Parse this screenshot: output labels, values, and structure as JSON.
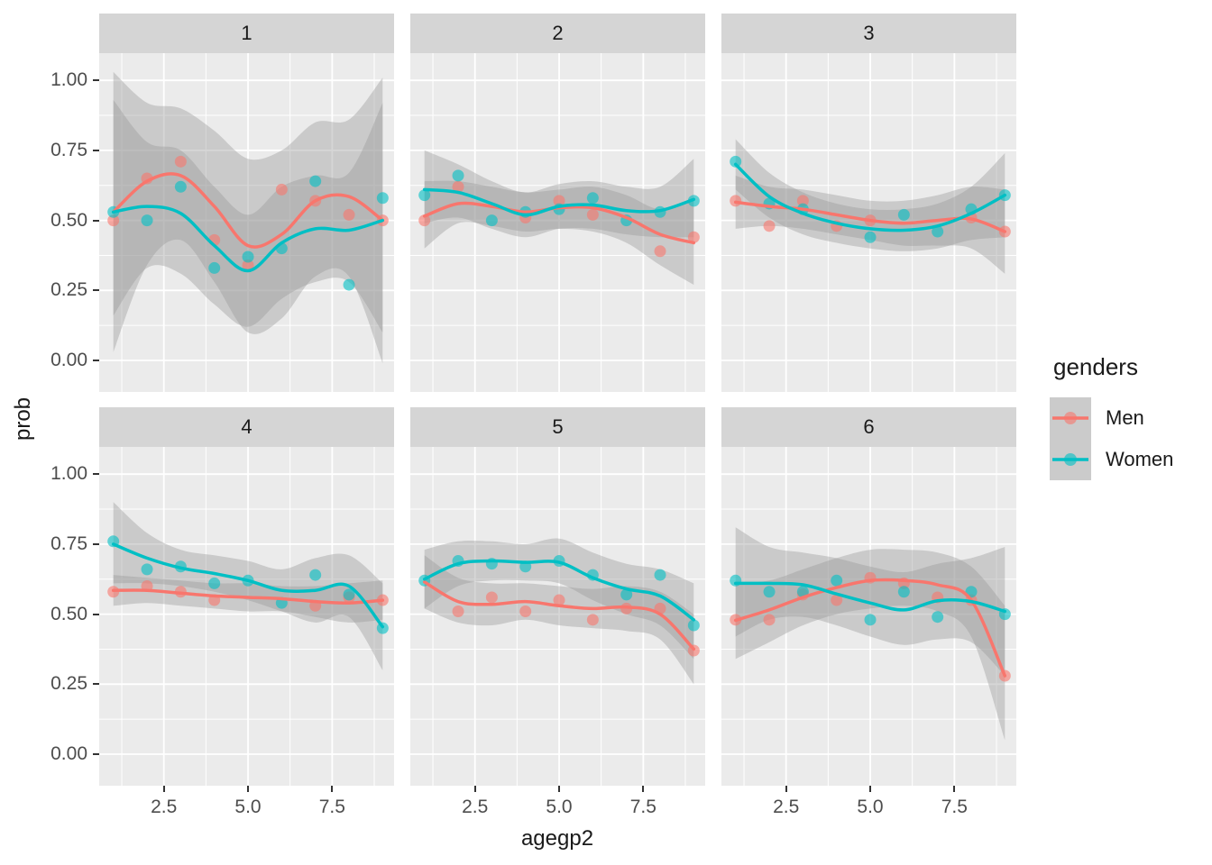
{
  "figure": {
    "y_axis_title": "prob",
    "x_axis_title": "agegp2",
    "y_ticks": [
      "1.00",
      "0.75",
      "0.50",
      "0.25",
      "0.00"
    ],
    "x_ticks": [
      "2.5",
      "5.0",
      "7.5"
    ],
    "legend": {
      "title": "genders",
      "entries": [
        {
          "label": "Men",
          "color": "#F8766D"
        },
        {
          "label": "Women",
          "color": "#00BFC4"
        }
      ]
    },
    "colors": {
      "men": "#F8766D",
      "women": "#00BFC4",
      "panel_bg": "#EBEBEB",
      "strip_bg": "#D5D5D5",
      "grid": "#FFFFFF",
      "ribbon": "rgba(153,153,153,0.4)",
      "axis_text": "#4D4D4D",
      "tick_mark": "#333333",
      "title_text": "#1A1A1A"
    }
  },
  "chart_data": {
    "type": "scatter",
    "subtype": "points + loess smooth with confidence ribbons, faceted",
    "xlabel": "agegp2",
    "ylabel": "prob",
    "xlim": [
      0.6,
      9.4
    ],
    "ylim": [
      -0.11,
      1.1
    ],
    "x_tick_values": [
      2.5,
      5.0,
      7.5
    ],
    "y_tick_values": [
      0.0,
      0.25,
      0.5,
      0.75,
      1.0
    ],
    "grid": "on",
    "legend_position": "right",
    "legend_title": "genders",
    "smooth_x": [
      1,
      2,
      3,
      4,
      5,
      6,
      7,
      8,
      9
    ],
    "facets": [
      {
        "facet": "1",
        "series": [
          {
            "name": "Men",
            "color": "#F8766D",
            "points": [
              [
                1,
                0.5
              ],
              [
                2,
                0.65
              ],
              [
                3,
                0.71
              ],
              [
                4,
                0.43
              ],
              [
                5,
                0.34
              ],
              [
                6,
                0.61
              ],
              [
                7,
                0.57
              ],
              [
                8,
                0.52
              ],
              [
                9,
                0.5
              ]
            ],
            "smooth_y": [
              0.53,
              0.64,
              0.66,
              0.55,
              0.41,
              0.45,
              0.57,
              0.585,
              0.5
            ],
            "ribbon_upper": [
              1.03,
              0.92,
              0.9,
              0.82,
              0.72,
              0.75,
              0.85,
              0.86,
              1.01
            ],
            "ribbon_lower": [
              0.03,
              0.34,
              0.43,
              0.28,
              0.1,
              0.15,
              0.3,
              0.3,
              -0.01
            ]
          },
          {
            "name": "Women",
            "color": "#00BFC4",
            "points": [
              [
                1,
                0.53
              ],
              [
                2,
                0.5
              ],
              [
                3,
                0.62
              ],
              [
                4,
                0.33
              ],
              [
                5,
                0.37
              ],
              [
                6,
                0.4
              ],
              [
                7,
                0.64
              ],
              [
                8,
                0.27
              ],
              [
                9,
                0.58
              ]
            ],
            "smooth_y": [
              0.53,
              0.55,
              0.525,
              0.41,
              0.32,
              0.42,
              0.47,
              0.465,
              0.5
            ],
            "ribbon_upper": [
              0.93,
              0.78,
              0.75,
              0.62,
              0.52,
              0.62,
              0.66,
              0.67,
              0.92
            ],
            "ribbon_lower": [
              0.16,
              0.33,
              0.31,
              0.2,
              0.12,
              0.22,
              0.28,
              0.28,
              0.1
            ]
          }
        ]
      },
      {
        "facet": "2",
        "series": [
          {
            "name": "Men",
            "color": "#F8766D",
            "points": [
              [
                1,
                0.5
              ],
              [
                2,
                0.62
              ],
              [
                4,
                0.51
              ],
              [
                5,
                0.57
              ],
              [
                6,
                0.52
              ],
              [
                8,
                0.39
              ],
              [
                9,
                0.44
              ]
            ],
            "smooth_y": [
              0.515,
              0.56,
              0.55,
              0.53,
              0.545,
              0.545,
              0.51,
              0.45,
              0.42
            ],
            "ribbon_upper": [
              0.64,
              0.64,
              0.62,
              0.6,
              0.61,
              0.62,
              0.59,
              0.54,
              0.58
            ],
            "ribbon_lower": [
              0.4,
              0.49,
              0.48,
              0.46,
              0.47,
              0.46,
              0.42,
              0.34,
              0.27
            ]
          },
          {
            "name": "Women",
            "color": "#00BFC4",
            "points": [
              [
                1,
                0.59
              ],
              [
                2,
                0.66
              ],
              [
                3,
                0.5
              ],
              [
                4,
                0.53
              ],
              [
                5,
                0.54
              ],
              [
                6,
                0.58
              ],
              [
                7,
                0.5
              ],
              [
                8,
                0.53
              ],
              [
                9,
                0.57
              ]
            ],
            "smooth_y": [
              0.61,
              0.6,
              0.56,
              0.52,
              0.55,
              0.555,
              0.535,
              0.535,
              0.575
            ],
            "ribbon_upper": [
              0.75,
              0.7,
              0.64,
              0.6,
              0.63,
              0.64,
              0.62,
              0.62,
              0.72
            ],
            "ribbon_lower": [
              0.49,
              0.51,
              0.47,
              0.44,
              0.47,
              0.47,
              0.45,
              0.44,
              0.44
            ]
          }
        ]
      },
      {
        "facet": "3",
        "series": [
          {
            "name": "Men",
            "color": "#F8766D",
            "points": [
              [
                1,
                0.57
              ],
              [
                2,
                0.48
              ],
              [
                3,
                0.57
              ],
              [
                4,
                0.48
              ],
              [
                5,
                0.5
              ],
              [
                8,
                0.51
              ],
              [
                9,
                0.46
              ]
            ],
            "smooth_y": [
              0.565,
              0.55,
              0.54,
              0.52,
              0.5,
              0.49,
              0.5,
              0.505,
              0.46
            ],
            "ribbon_upper": [
              0.66,
              0.62,
              0.61,
              0.59,
              0.57,
              0.57,
              0.59,
              0.62,
              0.61
            ],
            "ribbon_lower": [
              0.47,
              0.48,
              0.47,
              0.45,
              0.43,
              0.41,
              0.41,
              0.4,
              0.31
            ]
          },
          {
            "name": "Women",
            "color": "#00BFC4",
            "points": [
              [
                1,
                0.71
              ],
              [
                2,
                0.56
              ],
              [
                3,
                0.54
              ],
              [
                5,
                0.44
              ],
              [
                6,
                0.52
              ],
              [
                7,
                0.46
              ],
              [
                8,
                0.54
              ],
              [
                9,
                0.59
              ]
            ],
            "smooth_y": [
              0.7,
              0.585,
              0.525,
              0.49,
              0.47,
              0.465,
              0.48,
              0.525,
              0.59
            ],
            "ribbon_upper": [
              0.79,
              0.67,
              0.6,
              0.56,
              0.54,
              0.54,
              0.56,
              0.62,
              0.74
            ],
            "ribbon_lower": [
              0.61,
              0.51,
              0.45,
              0.42,
              0.4,
              0.39,
              0.4,
              0.43,
              0.44
            ]
          }
        ]
      },
      {
        "facet": "4",
        "series": [
          {
            "name": "Men",
            "color": "#F8766D",
            "points": [
              [
                1,
                0.58
              ],
              [
                2,
                0.6
              ],
              [
                3,
                0.58
              ],
              [
                4,
                0.55
              ],
              [
                7,
                0.53
              ],
              [
                8,
                0.56
              ],
              [
                9,
                0.55
              ]
            ],
            "smooth_y": [
              0.585,
              0.585,
              0.575,
              0.565,
              0.56,
              0.555,
              0.545,
              0.54,
              0.55
            ],
            "ribbon_upper": [
              0.64,
              0.63,
              0.62,
              0.61,
              0.61,
              0.6,
              0.6,
              0.61,
              0.62
            ],
            "ribbon_lower": [
              0.53,
              0.54,
              0.53,
              0.52,
              0.51,
              0.51,
              0.49,
              0.47,
              0.48
            ]
          },
          {
            "name": "Women",
            "color": "#00BFC4",
            "points": [
              [
                1,
                0.76
              ],
              [
                2,
                0.66
              ],
              [
                3,
                0.67
              ],
              [
                4,
                0.61
              ],
              [
                5,
                0.62
              ],
              [
                6,
                0.54
              ],
              [
                7,
                0.64
              ],
              [
                8,
                0.57
              ],
              [
                9,
                0.45
              ]
            ],
            "smooth_y": [
              0.75,
              0.7,
              0.665,
              0.645,
              0.62,
              0.585,
              0.585,
              0.6,
              0.455
            ],
            "ribbon_upper": [
              0.9,
              0.79,
              0.73,
              0.71,
              0.69,
              0.66,
              0.7,
              0.71,
              0.61
            ],
            "ribbon_lower": [
              0.61,
              0.61,
              0.6,
              0.58,
              0.55,
              0.51,
              0.47,
              0.49,
              0.3
            ]
          }
        ]
      },
      {
        "facet": "5",
        "series": [
          {
            "name": "Men",
            "color": "#F8766D",
            "points": [
              [
                2,
                0.51
              ],
              [
                3,
                0.56
              ],
              [
                4,
                0.51
              ],
              [
                5,
                0.55
              ],
              [
                6,
                0.48
              ],
              [
                7,
                0.52
              ],
              [
                8,
                0.52
              ],
              [
                9,
                0.37
              ]
            ],
            "smooth_y": [
              0.615,
              0.545,
              0.535,
              0.545,
              0.53,
              0.52,
              0.525,
              0.5,
              0.375
            ],
            "ribbon_upper": [
              0.71,
              0.63,
              0.61,
              0.61,
              0.6,
              0.59,
              0.6,
              0.58,
              0.5
            ],
            "ribbon_lower": [
              0.52,
              0.47,
              0.46,
              0.48,
              0.46,
              0.45,
              0.44,
              0.41,
              0.25
            ]
          },
          {
            "name": "Women",
            "color": "#00BFC4",
            "points": [
              [
                1,
                0.62
              ],
              [
                2,
                0.69
              ],
              [
                3,
                0.68
              ],
              [
                4,
                0.67
              ],
              [
                5,
                0.69
              ],
              [
                6,
                0.64
              ],
              [
                7,
                0.57
              ],
              [
                8,
                0.64
              ],
              [
                9,
                0.46
              ]
            ],
            "smooth_y": [
              0.625,
              0.68,
              0.69,
              0.685,
              0.685,
              0.63,
              0.59,
              0.565,
              0.48
            ],
            "ribbon_upper": [
              0.73,
              0.76,
              0.76,
              0.75,
              0.77,
              0.72,
              0.68,
              0.66,
              0.61
            ],
            "ribbon_lower": [
              0.52,
              0.6,
              0.62,
              0.62,
              0.61,
              0.55,
              0.5,
              0.46,
              0.34
            ]
          }
        ]
      },
      {
        "facet": "6",
        "series": [
          {
            "name": "Men",
            "color": "#F8766D",
            "points": [
              [
                1,
                0.48
              ],
              [
                2,
                0.48
              ],
              [
                3,
                0.57
              ],
              [
                4,
                0.55
              ],
              [
                5,
                0.63
              ],
              [
                6,
                0.61
              ],
              [
                7,
                0.56
              ],
              [
                8,
                0.55
              ],
              [
                9,
                0.28
              ]
            ],
            "smooth_y": [
              0.478,
              0.515,
              0.56,
              0.595,
              0.62,
              0.62,
              0.605,
              0.55,
              0.28
            ],
            "ribbon_upper": [
              0.61,
              0.62,
              0.66,
              0.7,
              0.73,
              0.73,
              0.72,
              0.67,
              0.53
            ],
            "ribbon_lower": [
              0.34,
              0.4,
              0.46,
              0.5,
              0.52,
              0.53,
              0.51,
              0.42,
              0.05
            ]
          },
          {
            "name": "Women",
            "color": "#00BFC4",
            "points": [
              [
                1,
                0.62
              ],
              [
                2,
                0.58
              ],
              [
                3,
                0.58
              ],
              [
                4,
                0.62
              ],
              [
                5,
                0.48
              ],
              [
                6,
                0.58
              ],
              [
                7,
                0.49
              ],
              [
                8,
                0.58
              ],
              [
                9,
                0.5
              ]
            ],
            "smooth_y": [
              0.61,
              0.61,
              0.605,
              0.572,
              0.54,
              0.515,
              0.548,
              0.545,
              0.51
            ],
            "ribbon_upper": [
              0.81,
              0.74,
              0.72,
              0.7,
              0.67,
              0.65,
              0.68,
              0.7,
              0.74
            ],
            "ribbon_lower": [
              0.42,
              0.48,
              0.49,
              0.46,
              0.42,
              0.39,
              0.41,
              0.4,
              0.28
            ]
          }
        ]
      }
    ]
  }
}
